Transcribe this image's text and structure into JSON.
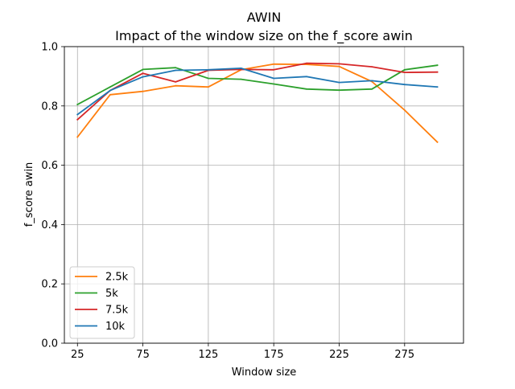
{
  "chart_data": {
    "type": "line",
    "title": "AWIN",
    "subtitle": "Impact of the window size on the f_score awin",
    "xlabel": "Window size",
    "ylabel": "f_score awin",
    "x": [
      25,
      50,
      75,
      100,
      125,
      150,
      175,
      200,
      225,
      250,
      275,
      300
    ],
    "xticks": [
      "25",
      "75",
      "125",
      "175",
      "225",
      "275"
    ],
    "yticks": [
      "0.0",
      "0.2",
      "0.4",
      "0.6",
      "0.8",
      "1.0"
    ],
    "xlim": [
      15,
      320
    ],
    "ylim": [
      0.0,
      1.0
    ],
    "grid": true,
    "legend_position": "lower-left",
    "series": [
      {
        "name": "2.5k",
        "color": "#ff7f0e",
        "values": [
          0.695,
          0.838,
          0.849,
          0.868,
          0.864,
          0.922,
          0.941,
          0.94,
          0.933,
          0.882,
          0.786,
          0.678
        ]
      },
      {
        "name": "5k",
        "color": "#2ca02c",
        "values": [
          0.805,
          0.864,
          0.923,
          0.929,
          0.893,
          0.89,
          0.874,
          0.857,
          0.853,
          0.857,
          0.922,
          0.937
        ]
      },
      {
        "name": "7.5k",
        "color": "#d62728",
        "values": [
          0.754,
          0.852,
          0.91,
          0.881,
          0.92,
          0.923,
          0.922,
          0.944,
          0.942,
          0.932,
          0.913,
          0.914
        ]
      },
      {
        "name": "10k",
        "color": "#1f77b4",
        "values": [
          0.771,
          0.852,
          0.898,
          0.92,
          0.922,
          0.927,
          0.893,
          0.899,
          0.879,
          0.885,
          0.872,
          0.864
        ]
      }
    ]
  }
}
